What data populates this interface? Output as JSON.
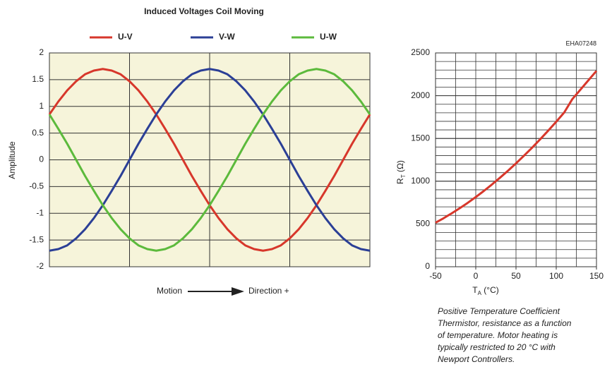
{
  "chart_data": [
    {
      "type": "line",
      "title": "Induced Voltages Coil Moving",
      "ylabel": "Amplitude",
      "xlabel": {
        "from": "Motion",
        "to": "Direction +"
      },
      "x": [
        0,
        10,
        20,
        30,
        40,
        50,
        60,
        70,
        80,
        90,
        100,
        110,
        120,
        130,
        140,
        150,
        160,
        170,
        180,
        190,
        200,
        210,
        220,
        230,
        240,
        250,
        260,
        270,
        280,
        290,
        300,
        310,
        320,
        330,
        340,
        350,
        360
      ],
      "xlim": [
        0,
        360
      ],
      "xgrid": [
        90,
        180,
        270
      ],
      "ylim": [
        -2,
        2
      ],
      "yticks": [
        -2,
        -1.5,
        -1,
        -0.5,
        0,
        0.5,
        1,
        1.5,
        2
      ],
      "grid": true,
      "background": "#f6f4da",
      "series": [
        {
          "name": "U-V",
          "color": "#d7372b",
          "values": [
            0.85,
            1.09,
            1.3,
            1.47,
            1.6,
            1.67,
            1.7,
            1.67,
            1.6,
            1.47,
            1.3,
            1.09,
            0.85,
            0.58,
            0.3,
            0,
            -0.3,
            -0.58,
            -0.85,
            -1.09,
            -1.3,
            -1.47,
            -1.6,
            -1.67,
            -1.7,
            -1.67,
            -1.6,
            -1.47,
            -1.3,
            -1.09,
            -0.85,
            -0.58,
            -0.3,
            0,
            0.3,
            0.58,
            0.85
          ]
        },
        {
          "name": "V-W",
          "color": "#2b3f96",
          "values": [
            -1.7,
            -1.67,
            -1.6,
            -1.47,
            -1.3,
            -1.09,
            -0.85,
            -0.58,
            -0.3,
            0,
            0.3,
            0.58,
            0.85,
            1.09,
            1.3,
            1.47,
            1.6,
            1.67,
            1.7,
            1.67,
            1.6,
            1.47,
            1.3,
            1.09,
            0.85,
            0.58,
            0.3,
            0,
            -0.3,
            -0.58,
            -0.85,
            -1.09,
            -1.3,
            -1.47,
            -1.6,
            -1.67,
            -1.7
          ]
        },
        {
          "name": "U-W",
          "color": "#5cba3c",
          "values": [
            0.85,
            0.58,
            0.3,
            0,
            -0.3,
            -0.58,
            -0.85,
            -1.09,
            -1.3,
            -1.47,
            -1.6,
            -1.67,
            -1.7,
            -1.67,
            -1.6,
            -1.47,
            -1.3,
            -1.09,
            -0.85,
            -0.58,
            -0.3,
            0,
            0.3,
            0.58,
            0.85,
            1.09,
            1.3,
            1.47,
            1.6,
            1.67,
            1.7,
            1.67,
            1.6,
            1.47,
            1.3,
            1.09,
            0.85
          ]
        }
      ]
    },
    {
      "type": "line",
      "annotation": "EHA07248",
      "ylabel": {
        "text": "R",
        "sub": "T",
        "unit": " (Ω)"
      },
      "xlabel": {
        "text": "T",
        "sub": "A",
        "unit": " (°C)"
      },
      "x": [
        -50,
        -40,
        -30,
        -20,
        -10,
        0,
        10,
        20,
        30,
        40,
        50,
        60,
        70,
        80,
        90,
        100,
        110,
        120,
        130,
        140,
        150
      ],
      "xlim": [
        -50,
        150
      ],
      "xticks": [
        -50,
        0,
        50,
        100,
        150
      ],
      "ylim": [
        0,
        2500
      ],
      "yticks": [
        0,
        500,
        1000,
        1500,
        2000,
        2500
      ],
      "grid": true,
      "grid_step": [
        25,
        100
      ],
      "series": [
        {
          "color": "#d7372b",
          "values": [
            515,
            567,
            624,
            684,
            747,
            815,
            886,
            961,
            1040,
            1122,
            1209,
            1299,
            1392,
            1490,
            1591,
            1696,
            1805,
            1960,
            2070,
            2180,
            2290
          ]
        }
      ],
      "caption": [
        "Positive Temperature Coefficient",
        "Thermistor, resistance as a function",
        "of temperature.  Motor heating is",
        "typically restricted to 20 °C with",
        "Newport Controllers."
      ]
    }
  ]
}
